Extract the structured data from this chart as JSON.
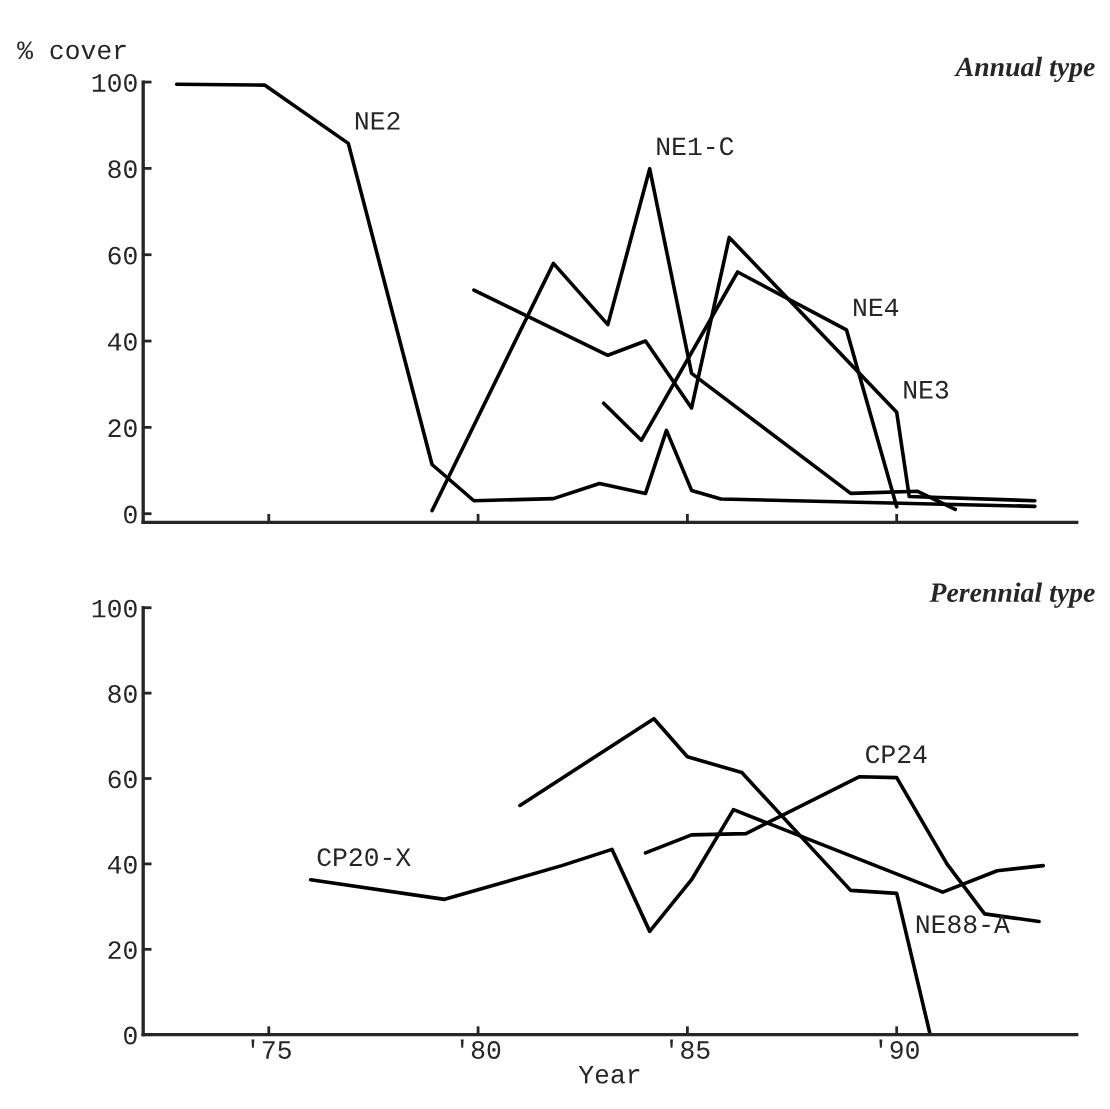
{
  "chart_data": [
    {
      "type": "line",
      "title": "Annual type",
      "ylabel": "% cover",
      "xlim": [
        72.0,
        94.3
      ],
      "ylim": [
        -2,
        100
      ],
      "xticks": [
        {
          "value": 75,
          "label": null
        },
        {
          "value": 80,
          "label": null
        },
        {
          "value": 85,
          "label": null
        },
        {
          "value": 90,
          "label": null
        }
      ],
      "yticks": [
        0,
        20,
        40,
        60,
        80,
        100
      ],
      "tick_labels": "y",
      "grid": false,
      "legend": false,
      "marker": "none",
      "line_style": "solid",
      "series": [
        {
          "color": "#000000",
          "x": [
            72.8,
            74.9,
            76.9,
            78.9,
            79.9,
            81.8,
            82.9,
            84.0,
            84.5,
            85.1,
            85.8,
            93.3
          ],
          "values": [
            99.5,
            99.3,
            85.8,
            11.4,
            3,
            3.5,
            7,
            4.7,
            19.3,
            5.4,
            3.4,
            1.7
          ]
        },
        {
          "color": "#000000",
          "x": [
            78.9,
            81.8,
            83.1,
            84.1,
            85.1,
            88.9,
            90.5,
            91.4
          ],
          "values": [
            0.7,
            58,
            43.8,
            79.9,
            32.5,
            4.7,
            5.2,
            1
          ]
        },
        {
          "color": "#000000",
          "x": [
            79.9,
            83.1,
            84.0,
            85.1,
            86.0,
            90.0,
            90.3,
            93.3
          ],
          "values": [
            51.8,
            36.7,
            40,
            24.5,
            64,
            23.5,
            4,
            3
          ]
        },
        {
          "color": "#000000",
          "x": [
            83.0,
            83.9,
            86.2,
            88.8,
            90.0
          ],
          "values": [
            25.6,
            17,
            56,
            42.6,
            1.6
          ]
        }
      ],
      "annotations": [
        {
          "text": "NE2",
          "x": 76.9,
          "y": 85.8
        },
        {
          "text": "NE1-C",
          "x": 84.1,
          "y": 79.9
        },
        {
          "text": "NE4",
          "x": 88.8,
          "y": 42.6
        },
        {
          "text": "NE3",
          "x": 90.0,
          "y": 23.5
        }
      ]
    },
    {
      "type": "line",
      "title": "Perennial type",
      "xlabel": "Year",
      "xlim": [
        72.0,
        94.3
      ],
      "ylim": [
        0,
        100
      ],
      "xticks": [
        {
          "value": 75,
          "label": "'75"
        },
        {
          "value": 80,
          "label": "'80"
        },
        {
          "value": 85,
          "label": "'85"
        },
        {
          "value": 90,
          "label": "'90"
        }
      ],
      "yticks": [
        0,
        20,
        40,
        60,
        80,
        100
      ],
      "grid": false,
      "legend": false,
      "marker": "none",
      "line_style": "solid",
      "series": [
        {
          "color": "#000000",
          "x": [
            76.0,
            79.2,
            82.0,
            83.2,
            84.1,
            85.1,
            86.1,
            91.1,
            92.4,
            93.5
          ],
          "values": [
            36.3,
            31.7,
            39.6,
            43.4,
            24.2,
            36.3,
            52.7,
            33.4,
            38.4,
            39.6
          ]
        },
        {
          "color": "#000000",
          "x": [
            81.0,
            84.2,
            85.0,
            86.3,
            88.9,
            90.0,
            90.8
          ],
          "values": [
            53.7,
            74,
            65.1,
            61.4,
            33.8,
            33.1,
            0
          ]
        },
        {
          "color": "#000000",
          "x": [
            84.0,
            85.1,
            86.4,
            89.1,
            90.0,
            91.2,
            92.1,
            93.4
          ],
          "values": [
            42.6,
            46.8,
            47.1,
            60.4,
            60.2,
            40,
            28.3,
            26.5
          ]
        }
      ],
      "annotations": [
        {
          "text": "CP20-X",
          "x": 76.0,
          "y": 36.3
        },
        {
          "text": "CP24",
          "x": 89.1,
          "y": 60.4
        },
        {
          "text": "NE88-A",
          "x": 90.3,
          "y": 20.6
        }
      ]
    }
  ]
}
